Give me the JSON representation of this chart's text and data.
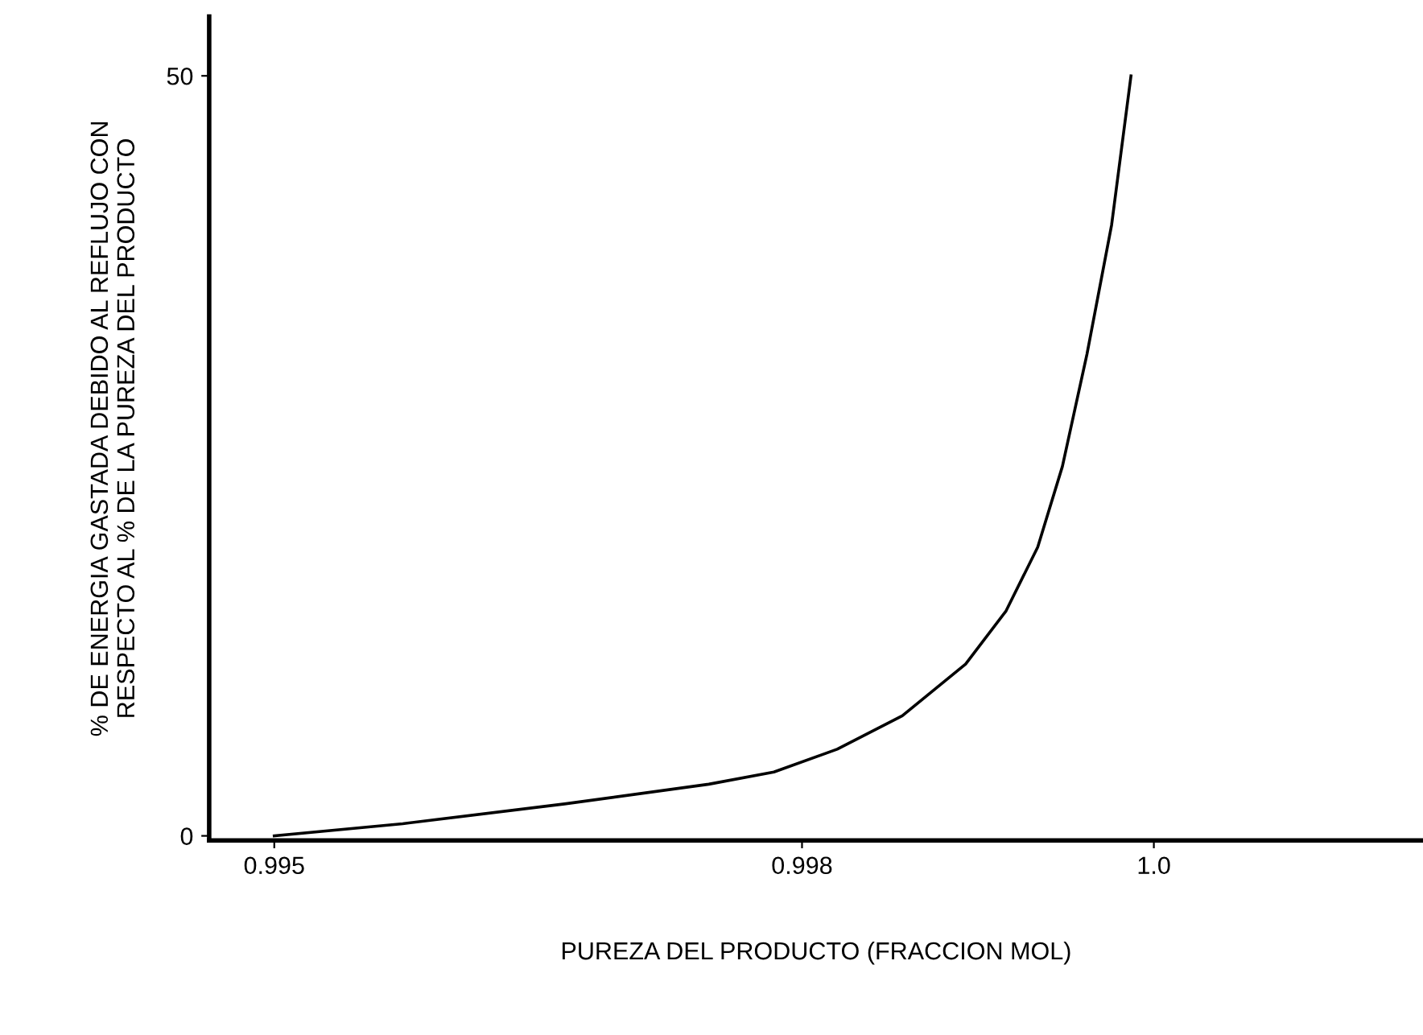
{
  "chart_data": {
    "type": "line",
    "xlabel": "PUREZA DEL PRODUCTO (FRACCION MOL)",
    "ylabel": "% DE ENERGIA GASTADA DEBIDO AL REFLUJO CON\nRESPECTO AL % DE LA PUREZA DEL PRODUCTO",
    "series": [
      {
        "color": "#000000",
        "x": [
          0.995,
          0.99573,
          0.99665,
          0.99747,
          0.99784,
          0.9982,
          0.99857,
          0.99893,
          0.99916,
          0.99934,
          0.99948,
          0.99962,
          0.99976,
          0.99987
        ],
        "values": [
          0,
          0.8,
          2.1,
          3.4,
          4.2,
          5.7,
          7.9,
          11.3,
          14.8,
          19.0,
          24.3,
          31.7,
          40.2,
          50
        ]
      }
    ],
    "xlim": [
      0.99463,
      1.00153
    ],
    "ylim": [
      -0.3,
      53.9
    ],
    "xticks": [
      0.995,
      0.998,
      {
        "value": 1.0,
        "label": "1.0"
      }
    ],
    "yticks": [
      0,
      50
    ],
    "grid": false,
    "legend": false,
    "marker": "none",
    "line_style": "solid"
  }
}
